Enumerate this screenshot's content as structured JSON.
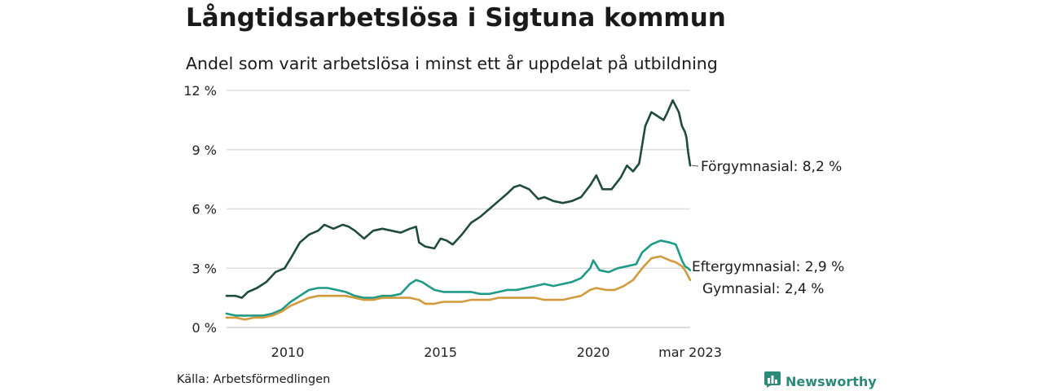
{
  "title": "Långtidsarbetslösa i Sigtuna kommun",
  "subtitle": "Andel som varit arbetslösa i minst ett år uppdelat på utbildning",
  "source": "Källa: Arbetsförmedlingen",
  "brand": "Newsworthy",
  "colors": {
    "forgymnasial": "#1f4a40",
    "eftergymnasial": "#1f9a87",
    "gymnasial": "#d19b3d",
    "grid": "#dddddd",
    "brand": "#2e8a78"
  },
  "chart_data": {
    "type": "line",
    "title": "Långtidsarbetslösa i Sigtuna kommun",
    "subtitle": "Andel som varit arbetslösa i minst ett år uppdelat på utbildning",
    "x_range": [
      2008.0,
      2023.17
    ],
    "ylim": [
      0,
      12
    ],
    "y_ticks": [
      0,
      3,
      6,
      9,
      12
    ],
    "y_tick_labels": [
      "0 %",
      "3 %",
      "6 %",
      "9 %",
      "12 %"
    ],
    "x_ticks": [
      2010,
      2015,
      2020,
      2023.17
    ],
    "x_tick_labels": [
      "2010",
      "2015",
      "2020",
      "mar 2023"
    ],
    "grid": "horizontal",
    "series": [
      {
        "name": "Förgymnasial",
        "end_label": "Förgymnasial: 8,2 %",
        "color": "#1f4a40",
        "points": [
          [
            2008.0,
            1.6
          ],
          [
            2008.3,
            1.6
          ],
          [
            2008.5,
            1.5
          ],
          [
            2008.7,
            1.8
          ],
          [
            2009.0,
            2.0
          ],
          [
            2009.3,
            2.3
          ],
          [
            2009.6,
            2.8
          ],
          [
            2009.9,
            3.0
          ],
          [
            2010.1,
            3.5
          ],
          [
            2010.4,
            4.3
          ],
          [
            2010.7,
            4.7
          ],
          [
            2011.0,
            4.9
          ],
          [
            2011.2,
            5.2
          ],
          [
            2011.5,
            5.0
          ],
          [
            2011.8,
            5.2
          ],
          [
            2012.0,
            5.1
          ],
          [
            2012.2,
            4.9
          ],
          [
            2012.5,
            4.5
          ],
          [
            2012.8,
            4.9
          ],
          [
            2013.1,
            5.0
          ],
          [
            2013.4,
            4.9
          ],
          [
            2013.7,
            4.8
          ],
          [
            2014.0,
            5.0
          ],
          [
            2014.2,
            5.1
          ],
          [
            2014.3,
            4.3
          ],
          [
            2014.5,
            4.1
          ],
          [
            2014.8,
            4.0
          ],
          [
            2015.0,
            4.5
          ],
          [
            2015.2,
            4.4
          ],
          [
            2015.4,
            4.2
          ],
          [
            2015.7,
            4.7
          ],
          [
            2016.0,
            5.3
          ],
          [
            2016.3,
            5.6
          ],
          [
            2016.6,
            6.0
          ],
          [
            2016.9,
            6.4
          ],
          [
            2017.2,
            6.8
          ],
          [
            2017.4,
            7.1
          ],
          [
            2017.6,
            7.2
          ],
          [
            2017.9,
            7.0
          ],
          [
            2018.2,
            6.5
          ],
          [
            2018.4,
            6.6
          ],
          [
            2018.7,
            6.4
          ],
          [
            2019.0,
            6.3
          ],
          [
            2019.3,
            6.4
          ],
          [
            2019.6,
            6.6
          ],
          [
            2019.9,
            7.2
          ],
          [
            2020.1,
            7.7
          ],
          [
            2020.3,
            7.0
          ],
          [
            2020.6,
            7.0
          ],
          [
            2020.9,
            7.6
          ],
          [
            2021.1,
            8.2
          ],
          [
            2021.3,
            7.9
          ],
          [
            2021.5,
            8.3
          ],
          [
            2021.7,
            10.2
          ],
          [
            2021.9,
            10.9
          ],
          [
            2022.1,
            10.7
          ],
          [
            2022.3,
            10.5
          ],
          [
            2022.4,
            10.8
          ],
          [
            2022.6,
            11.5
          ],
          [
            2022.8,
            10.9
          ],
          [
            2022.9,
            10.2
          ],
          [
            2023.0,
            9.9
          ],
          [
            2023.05,
            9.6
          ],
          [
            2023.1,
            8.9
          ],
          [
            2023.17,
            8.2
          ]
        ]
      },
      {
        "name": "Eftergymnasial",
        "end_label": "Eftergymnasial: 2,9 %",
        "color": "#1f9a87",
        "points": [
          [
            2008.0,
            0.7
          ],
          [
            2008.3,
            0.6
          ],
          [
            2008.6,
            0.6
          ],
          [
            2008.9,
            0.6
          ],
          [
            2009.2,
            0.6
          ],
          [
            2009.5,
            0.7
          ],
          [
            2009.8,
            0.9
          ],
          [
            2010.1,
            1.3
          ],
          [
            2010.4,
            1.6
          ],
          [
            2010.7,
            1.9
          ],
          [
            2011.0,
            2.0
          ],
          [
            2011.3,
            2.0
          ],
          [
            2011.6,
            1.9
          ],
          [
            2011.9,
            1.8
          ],
          [
            2012.2,
            1.6
          ],
          [
            2012.5,
            1.5
          ],
          [
            2012.8,
            1.5
          ],
          [
            2013.1,
            1.6
          ],
          [
            2013.4,
            1.6
          ],
          [
            2013.7,
            1.7
          ],
          [
            2014.0,
            2.2
          ],
          [
            2014.2,
            2.4
          ],
          [
            2014.4,
            2.3
          ],
          [
            2014.6,
            2.1
          ],
          [
            2014.8,
            1.9
          ],
          [
            2015.1,
            1.8
          ],
          [
            2015.4,
            1.8
          ],
          [
            2015.7,
            1.8
          ],
          [
            2016.0,
            1.8
          ],
          [
            2016.3,
            1.7
          ],
          [
            2016.6,
            1.7
          ],
          [
            2016.9,
            1.8
          ],
          [
            2017.2,
            1.9
          ],
          [
            2017.5,
            1.9
          ],
          [
            2017.8,
            2.0
          ],
          [
            2018.1,
            2.1
          ],
          [
            2018.4,
            2.2
          ],
          [
            2018.7,
            2.1
          ],
          [
            2019.0,
            2.2
          ],
          [
            2019.3,
            2.3
          ],
          [
            2019.6,
            2.5
          ],
          [
            2019.9,
            3.0
          ],
          [
            2020.0,
            3.4
          ],
          [
            2020.2,
            2.9
          ],
          [
            2020.5,
            2.8
          ],
          [
            2020.8,
            3.0
          ],
          [
            2021.1,
            3.1
          ],
          [
            2021.4,
            3.2
          ],
          [
            2021.6,
            3.8
          ],
          [
            2021.9,
            4.2
          ],
          [
            2022.2,
            4.4
          ],
          [
            2022.5,
            4.3
          ],
          [
            2022.7,
            4.2
          ],
          [
            2022.9,
            3.4
          ],
          [
            2023.0,
            3.1
          ],
          [
            2023.1,
            3.0
          ],
          [
            2023.17,
            2.9
          ]
        ]
      },
      {
        "name": "Gymnasial",
        "end_label": "Gymnasial: 2,4 %",
        "color": "#d19b3d",
        "points": [
          [
            2008.0,
            0.5
          ],
          [
            2008.3,
            0.5
          ],
          [
            2008.6,
            0.4
          ],
          [
            2008.9,
            0.5
          ],
          [
            2009.2,
            0.5
          ],
          [
            2009.5,
            0.6
          ],
          [
            2009.8,
            0.8
          ],
          [
            2010.1,
            1.1
          ],
          [
            2010.4,
            1.3
          ],
          [
            2010.7,
            1.5
          ],
          [
            2011.0,
            1.6
          ],
          [
            2011.3,
            1.6
          ],
          [
            2011.6,
            1.6
          ],
          [
            2011.9,
            1.6
          ],
          [
            2012.2,
            1.5
          ],
          [
            2012.5,
            1.4
          ],
          [
            2012.8,
            1.4
          ],
          [
            2013.1,
            1.5
          ],
          [
            2013.4,
            1.5
          ],
          [
            2013.7,
            1.5
          ],
          [
            2014.0,
            1.5
          ],
          [
            2014.3,
            1.4
          ],
          [
            2014.5,
            1.2
          ],
          [
            2014.8,
            1.2
          ],
          [
            2015.1,
            1.3
          ],
          [
            2015.4,
            1.3
          ],
          [
            2015.7,
            1.3
          ],
          [
            2016.0,
            1.4
          ],
          [
            2016.3,
            1.4
          ],
          [
            2016.6,
            1.4
          ],
          [
            2016.9,
            1.5
          ],
          [
            2017.2,
            1.5
          ],
          [
            2017.5,
            1.5
          ],
          [
            2017.8,
            1.5
          ],
          [
            2018.1,
            1.5
          ],
          [
            2018.4,
            1.4
          ],
          [
            2018.7,
            1.4
          ],
          [
            2019.0,
            1.4
          ],
          [
            2019.3,
            1.5
          ],
          [
            2019.6,
            1.6
          ],
          [
            2019.9,
            1.9
          ],
          [
            2020.1,
            2.0
          ],
          [
            2020.4,
            1.9
          ],
          [
            2020.7,
            1.9
          ],
          [
            2021.0,
            2.1
          ],
          [
            2021.3,
            2.4
          ],
          [
            2021.6,
            3.0
          ],
          [
            2021.9,
            3.5
          ],
          [
            2022.2,
            3.6
          ],
          [
            2022.5,
            3.4
          ],
          [
            2022.7,
            3.3
          ],
          [
            2022.9,
            3.1
          ],
          [
            2023.0,
            2.9
          ],
          [
            2023.1,
            2.6
          ],
          [
            2023.17,
            2.4
          ]
        ]
      }
    ]
  }
}
